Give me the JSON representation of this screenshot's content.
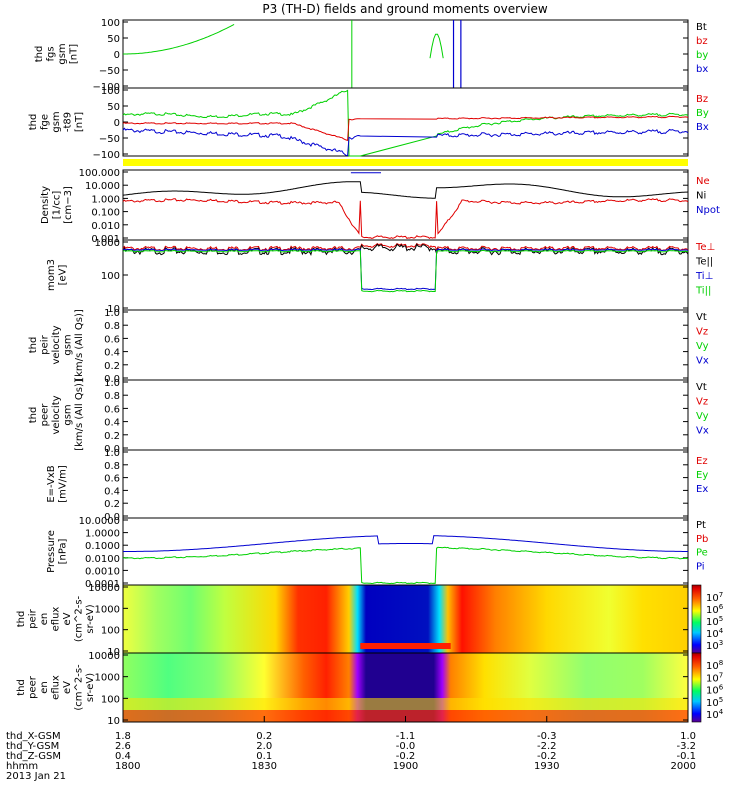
{
  "title": "P3 (TH-D) fields and ground moments overview",
  "colors": {
    "black": "#000000",
    "red": "#e00000",
    "green": "#00d000",
    "blue": "#0000d0",
    "yellow": "#ffff00"
  },
  "chart_data": [
    {
      "id": "fgs",
      "type": "line",
      "ylabel": [
        "thd",
        "fgs",
        "gsm",
        "[nT]"
      ],
      "yticks": [
        "100",
        "50",
        "0",
        "−50",
        "−100"
      ],
      "legend": [
        {
          "name": "Bt",
          "color": "black"
        },
        {
          "name": "bz",
          "color": "red"
        },
        {
          "name": "by",
          "color": "green"
        },
        {
          "name": "bx",
          "color": "blue"
        }
      ]
    },
    {
      "id": "fge",
      "type": "line",
      "ylabel": [
        "thd",
        "fge",
        "gsm",
        "-t89",
        "[nT]"
      ],
      "yticks": [
        "100",
        "50",
        "0",
        "−50",
        "−100"
      ],
      "legend": [
        {
          "name": "Bz",
          "color": "red"
        },
        {
          "name": "By",
          "color": "green"
        },
        {
          "name": "Bx",
          "color": "blue"
        }
      ]
    },
    {
      "id": "density",
      "type": "line",
      "ylabel": [
        "Density",
        "[1/cc]",
        "[cm−3]"
      ],
      "yticks": [
        "100.000",
        "10.000",
        "1.000",
        "0.100",
        "0.010",
        "0.001"
      ],
      "legend": [
        {
          "name": "Ne",
          "color": "red"
        },
        {
          "name": "Ni",
          "color": "black"
        },
        {
          "name": "Npot",
          "color": "blue"
        }
      ]
    },
    {
      "id": "temp",
      "type": "line",
      "ylabel": [
        "mom3",
        "[eV]"
      ],
      "yticks": [
        "1000",
        "100",
        "10"
      ],
      "legend": [
        {
          "name": "Te⊥",
          "color": "red"
        },
        {
          "name": "Te||",
          "color": "black"
        },
        {
          "name": "Ti⊥",
          "color": "blue"
        },
        {
          "name": "Ti||",
          "color": "green"
        }
      ]
    },
    {
      "id": "vi",
      "type": "line",
      "ylabel": [
        "thd",
        "peir",
        "velocity",
        "gsm",
        "[km/s (All Qs)]"
      ],
      "yticks": [
        "1.0",
        "0.8",
        "0.6",
        "0.4",
        "0.2",
        "0.0"
      ],
      "legend": [
        {
          "name": "Vt",
          "color": "black"
        },
        {
          "name": "Vz",
          "color": "red"
        },
        {
          "name": "Vy",
          "color": "green"
        },
        {
          "name": "Vx",
          "color": "blue"
        }
      ]
    },
    {
      "id": "ve",
      "type": "line",
      "ylabel": [
        "thd",
        "peer",
        "velocity",
        "gsm",
        "[km/s (All Qs)]"
      ],
      "yticks": [
        "1.0",
        "0.8",
        "0.6",
        "0.4",
        "0.2",
        "0.0"
      ],
      "legend": [
        {
          "name": "Vt",
          "color": "black"
        },
        {
          "name": "Vz",
          "color": "red"
        },
        {
          "name": "Vy",
          "color": "green"
        },
        {
          "name": "Vx",
          "color": "blue"
        }
      ]
    },
    {
      "id": "efield",
      "type": "line",
      "ylabel": [
        "E=-VxB",
        "[mV/m]"
      ],
      "yticks": [
        "1.0",
        "0.8",
        "0.6",
        "0.4",
        "0.2",
        "0.0"
      ],
      "legend": [
        {
          "name": "Ez",
          "color": "red"
        },
        {
          "name": "Ey",
          "color": "green"
        },
        {
          "name": "Ex",
          "color": "blue"
        }
      ]
    },
    {
      "id": "pressure",
      "type": "line",
      "ylabel": [
        "Pressure",
        "[nPa]"
      ],
      "yticks": [
        "10.0000",
        "1.0000",
        "0.1000",
        "0.0100",
        "0.0010",
        "0.0001"
      ],
      "legend": [
        {
          "name": "Pt",
          "color": "black"
        },
        {
          "name": "Pb",
          "color": "red"
        },
        {
          "name": "Pe",
          "color": "green"
        },
        {
          "name": "Pi",
          "color": "blue"
        }
      ]
    },
    {
      "id": "ion_spec",
      "type": "heatmap",
      "ylabel": [
        "thd",
        "peir",
        "en",
        "eflux",
        "eV",
        "(cm^2-s-",
        "sr-eV)"
      ],
      "yticks": [
        "10000",
        "1000",
        "100",
        "10"
      ],
      "colorbar": [
        {
          "base": "10",
          "exp": "7"
        },
        {
          "base": "10",
          "exp": "6"
        },
        {
          "base": "10",
          "exp": "5"
        },
        {
          "base": "10",
          "exp": "4"
        },
        {
          "base": "10",
          "exp": "3"
        }
      ]
    },
    {
      "id": "ele_spec",
      "type": "heatmap",
      "ylabel": [
        "thd",
        "peer",
        "en",
        "eflux",
        "eV",
        "(cm^2-s-",
        "sr-eV)"
      ],
      "yticks": [
        "10000",
        "1000",
        "100",
        "10"
      ],
      "colorbar": [
        {
          "base": "10",
          "exp": "8"
        },
        {
          "base": "10",
          "exp": "7"
        },
        {
          "base": "10",
          "exp": "6"
        },
        {
          "base": "10",
          "exp": "5"
        },
        {
          "base": "10",
          "exp": "4"
        }
      ]
    }
  ],
  "time_axis": {
    "row_labels": [
      "thd_X-GSM",
      "thd_Y-GSM",
      "thd_Z-GSM",
      "hhmm",
      "2013 Jan 21"
    ],
    "ticks": [
      {
        "x": "1.8",
        "y": "2.6",
        "z": "0.4",
        "hhmm": "1800"
      },
      {
        "x": "0.2",
        "y": "2.0",
        "z": "0.1",
        "hhmm": "1830"
      },
      {
        "x": "-1.1",
        "y": "-0.0",
        "z": "-0.2",
        "hhmm": "1900"
      },
      {
        "x": "-0.3",
        "y": "-2.2",
        "z": "-0.2",
        "hhmm": "1930"
      },
      {
        "x": "1.0",
        "y": "-3.2",
        "z": "-0.1",
        "hhmm": "2000"
      }
    ]
  }
}
